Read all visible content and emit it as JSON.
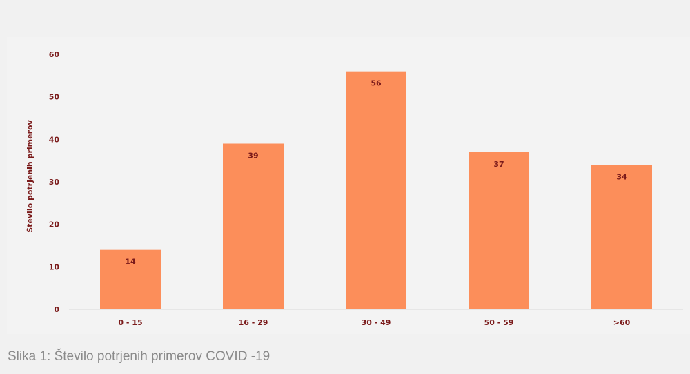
{
  "chart_data": {
    "type": "bar",
    "title": "",
    "xlabel": "",
    "ylabel": "Število potrjenih primerov",
    "categories": [
      "0 - 15",
      "16 - 29",
      "30 - 49",
      "50 - 59",
      ">60"
    ],
    "values": [
      14,
      39,
      56,
      37,
      34
    ],
    "ylim": [
      0,
      60
    ],
    "yticks": [
      "0",
      "10",
      "20",
      "30",
      "40",
      "50",
      "60"
    ],
    "grid": false,
    "data_labels": true,
    "bar_color": "#fc8e5a",
    "text_color": "#7a1a1a"
  },
  "caption": "Slika 1: Število potrjenih primerov COVID -19"
}
